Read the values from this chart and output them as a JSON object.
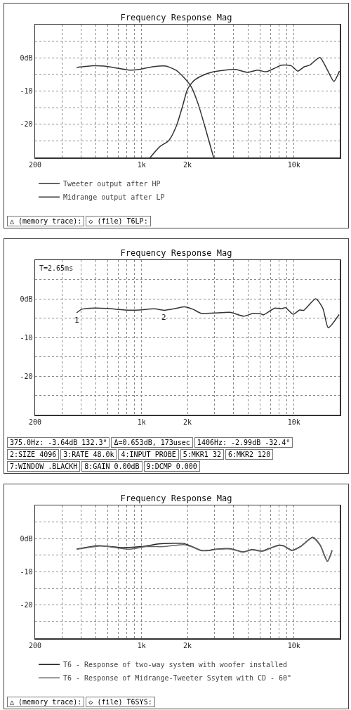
{
  "chart_data": [
    {
      "type": "line",
      "title": "Frequency Response Mag",
      "xlim": [
        200,
        20000
      ],
      "ylim": [
        -30,
        10
      ],
      "log": "x",
      "grid": true,
      "legend": "bottom",
      "line_style": "solid",
      "xticks": [
        {
          "value": 200,
          "label": "200"
        },
        {
          "value": 300,
          "label": null
        },
        {
          "value": 400,
          "label": null
        },
        {
          "value": 500,
          "label": null
        },
        {
          "value": 600,
          "label": null
        },
        {
          "value": 700,
          "label": null
        },
        {
          "value": 800,
          "label": null
        },
        {
          "value": 900,
          "label": null
        },
        {
          "value": 1000,
          "label": "1k"
        },
        {
          "value": 2000,
          "label": "2k"
        },
        {
          "value": 3000,
          "label": null
        },
        {
          "value": 4000,
          "label": null
        },
        {
          "value": 5000,
          "label": null
        },
        {
          "value": 6000,
          "label": null
        },
        {
          "value": 7000,
          "label": null
        },
        {
          "value": 8000,
          "label": null
        },
        {
          "value": 9000,
          "label": null
        },
        {
          "value": 10000,
          "label": "10k"
        },
        {
          "value": 20000,
          "label": null
        }
      ],
      "yticks": [
        {
          "value": 10,
          "label": null
        },
        {
          "value": 5,
          "label": null
        },
        {
          "value": 0,
          "label": "0dB"
        },
        {
          "value": -5,
          "label": null
        },
        {
          "value": -10,
          "label": "-10"
        },
        {
          "value": -15,
          "label": null
        },
        {
          "value": -20,
          "label": "-20"
        },
        {
          "value": -25,
          "label": null
        },
        {
          "value": -30,
          "label": null
        }
      ],
      "annotations": [
        "△ (memory trace):",
        "◇ (file) T6LP:"
      ],
      "series": [
        {
          "name": "Tweeter output after HP",
          "color": "#333333",
          "x": [
            1140,
            1320,
            1510,
            1690,
            1870,
            2000,
            2200,
            2520,
            2970,
            3390,
            4130,
            4960,
            5750,
            6570,
            7500,
            8280,
            9610,
            10600,
            11700,
            12700,
            14800,
            16600,
            18300,
            19900
          ],
          "values": [
            -30,
            -26.7,
            -24.9,
            -20.6,
            -14.1,
            -9.5,
            -6.9,
            -5.3,
            -4.2,
            -3.8,
            -3.5,
            -4.4,
            -3.7,
            -4.2,
            -3.1,
            -2.2,
            -2.4,
            -4,
            -2.7,
            -2.2,
            0.1,
            -3.7,
            -7.1,
            -4
          ]
        },
        {
          "name": "Midrange output after LP",
          "color": "#333333",
          "x": [
            375,
            481,
            568,
            693,
            845,
            964,
            1180,
            1440,
            1690,
            1930,
            2130,
            2360,
            2600,
            2970
          ],
          "values": [
            -2.9,
            -2.4,
            -2.5,
            -3.1,
            -3.7,
            -3.5,
            -2.7,
            -2.5,
            -3.8,
            -6.3,
            -8.9,
            -14.1,
            -20.6,
            -30
          ]
        }
      ]
    },
    {
      "type": "line",
      "title": "Frequency Response Mag",
      "subtitle": "T=2.65ms",
      "xlim": [
        200,
        20000
      ],
      "ylim": [
        -30,
        10
      ],
      "log": "x",
      "grid": true,
      "line_style": "solid",
      "xticks": [
        {
          "value": 200,
          "label": "200"
        },
        {
          "value": 300,
          "label": null
        },
        {
          "value": 400,
          "label": null
        },
        {
          "value": 500,
          "label": null
        },
        {
          "value": 600,
          "label": null
        },
        {
          "value": 700,
          "label": null
        },
        {
          "value": 800,
          "label": null
        },
        {
          "value": 900,
          "label": null
        },
        {
          "value": 1000,
          "label": "1k"
        },
        {
          "value": 2000,
          "label": "2k"
        },
        {
          "value": 3000,
          "label": null
        },
        {
          "value": 4000,
          "label": null
        },
        {
          "value": 5000,
          "label": null
        },
        {
          "value": 6000,
          "label": null
        },
        {
          "value": 7000,
          "label": null
        },
        {
          "value": 8000,
          "label": null
        },
        {
          "value": 9000,
          "label": null
        },
        {
          "value": 10000,
          "label": "10k"
        },
        {
          "value": 20000,
          "label": null
        }
      ],
      "yticks": [
        {
          "value": 10,
          "label": null
        },
        {
          "value": 5,
          "label": null
        },
        {
          "value": 0,
          "label": "0dB"
        },
        {
          "value": -5,
          "label": null
        },
        {
          "value": -10,
          "label": "-10"
        },
        {
          "value": -15,
          "label": null
        },
        {
          "value": -20,
          "label": "-20"
        },
        {
          "value": -25,
          "label": null
        },
        {
          "value": -30,
          "label": null
        }
      ],
      "annotations": [
        {
          "text": "1",
          "x": 375,
          "y": -3.64
        },
        {
          "text": "2",
          "x": 1406,
          "y": -2.99
        },
        "375.0Hz: -3.64dB 132.3°",
        "Δ=0.653dB, 173usec",
        "1406Hz: -2.99dB -32.4°",
        "2:SIZE 4096",
        "3:RATE 48.0k",
        "4:INPUT PROBE",
        "5:MKR1 32",
        "6:MKR2 120",
        "7:WINDOW .BLACKH",
        "8:GAIN 0.00dB",
        "9:DCMP 0.000"
      ],
      "series": [
        {
          "color": "#333333",
          "x": [
            375,
            405,
            492,
            597,
            773,
            968,
            1210,
            1406,
            1680,
            1910,
            2170,
            2470,
            2990,
            3810,
            4700,
            5350,
            6080,
            6290,
            7500,
            8260,
            8820,
            9880,
            10900,
            11600,
            13900,
            15500,
            16800,
            19800
          ],
          "values": [
            -3.64,
            -2.7,
            -2.4,
            -2.5,
            -2.9,
            -2.9,
            -2.6,
            -2.99,
            -2.5,
            -2.1,
            -2.7,
            -3.8,
            -3.7,
            -3.5,
            -4.5,
            -3.8,
            -3.9,
            -4.2,
            -2.4,
            -2.6,
            -2.3,
            -4,
            -2.9,
            -3,
            0,
            -2.5,
            -7.5,
            -4.1
          ]
        }
      ]
    },
    {
      "type": "line",
      "title": "Frequency Response Mag",
      "xlim": [
        200,
        20000
      ],
      "ylim": [
        -30,
        10
      ],
      "log": "x",
      "grid": true,
      "legend": "bottom",
      "line_style": "solid",
      "xticks": [
        {
          "value": 200,
          "label": "200"
        },
        {
          "value": 300,
          "label": null
        },
        {
          "value": 400,
          "label": null
        },
        {
          "value": 500,
          "label": null
        },
        {
          "value": 600,
          "label": null
        },
        {
          "value": 700,
          "label": null
        },
        {
          "value": 800,
          "label": null
        },
        {
          "value": 900,
          "label": null
        },
        {
          "value": 1000,
          "label": "1k"
        },
        {
          "value": 2000,
          "label": "2k"
        },
        {
          "value": 3000,
          "label": null
        },
        {
          "value": 4000,
          "label": null
        },
        {
          "value": 5000,
          "label": null
        },
        {
          "value": 6000,
          "label": null
        },
        {
          "value": 7000,
          "label": null
        },
        {
          "value": 8000,
          "label": null
        },
        {
          "value": 9000,
          "label": null
        },
        {
          "value": 10000,
          "label": "10k"
        },
        {
          "value": 20000,
          "label": null
        }
      ],
      "yticks": [
        {
          "value": 10,
          "label": null
        },
        {
          "value": 5,
          "label": null
        },
        {
          "value": 0,
          "label": "0dB"
        },
        {
          "value": -5,
          "label": null
        },
        {
          "value": -10,
          "label": "-10"
        },
        {
          "value": -15,
          "label": null
        },
        {
          "value": -20,
          "label": "-20"
        },
        {
          "value": -25,
          "label": null
        },
        {
          "value": -30,
          "label": null
        }
      ],
      "annotations": [
        "△ (memory trace):",
        "◇ (file) T6SYS:"
      ],
      "series": [
        {
          "name": "T6 - Response of two-way system with woofer installed",
          "color": "#222222",
          "x": [
            375,
            527,
            750,
            1000,
            1290,
            1620,
            1880,
            2150,
            2450,
            2780,
            3160,
            3830,
            4640,
            5280,
            6190,
            6930,
            7870,
            8520,
            9690,
            11000,
            13300,
            14900,
            16600,
            17800
          ],
          "values": [
            -3.1,
            -2.1,
            -2.7,
            -2.4,
            -1.6,
            -1.4,
            -1.4,
            -2.4,
            -3.5,
            -3.5,
            -3.1,
            -3,
            -4,
            -3.3,
            -3.7,
            -2.9,
            -2,
            -2.1,
            -3.5,
            -2.4,
            0.4,
            -2,
            -6.8,
            -3.5
          ]
        },
        {
          "name": "T6 - Response of Midrange-Tweeter Ssytem with CD - 60\"",
          "color": "#666666",
          "x": [
            375,
            545,
            825,
            1070,
            1380,
            1670,
            1880,
            2150,
            2450,
            2780,
            3160,
            3830,
            4640,
            5280,
            6190,
            6930,
            7870,
            8520,
            9690,
            11000,
            13300,
            14900,
            16600,
            17800
          ],
          "values": [
            -3.2,
            -2.2,
            -3.2,
            -2.4,
            -2.4,
            -2,
            -1.8,
            -2.5,
            -3.6,
            -3.6,
            -3.2,
            -3.1,
            -4.1,
            -3.4,
            -3.8,
            -3,
            -2.1,
            -2.2,
            -3.6,
            -2.5,
            0.3,
            -2.1,
            -6.9,
            -3.6
          ]
        }
      ]
    }
  ]
}
